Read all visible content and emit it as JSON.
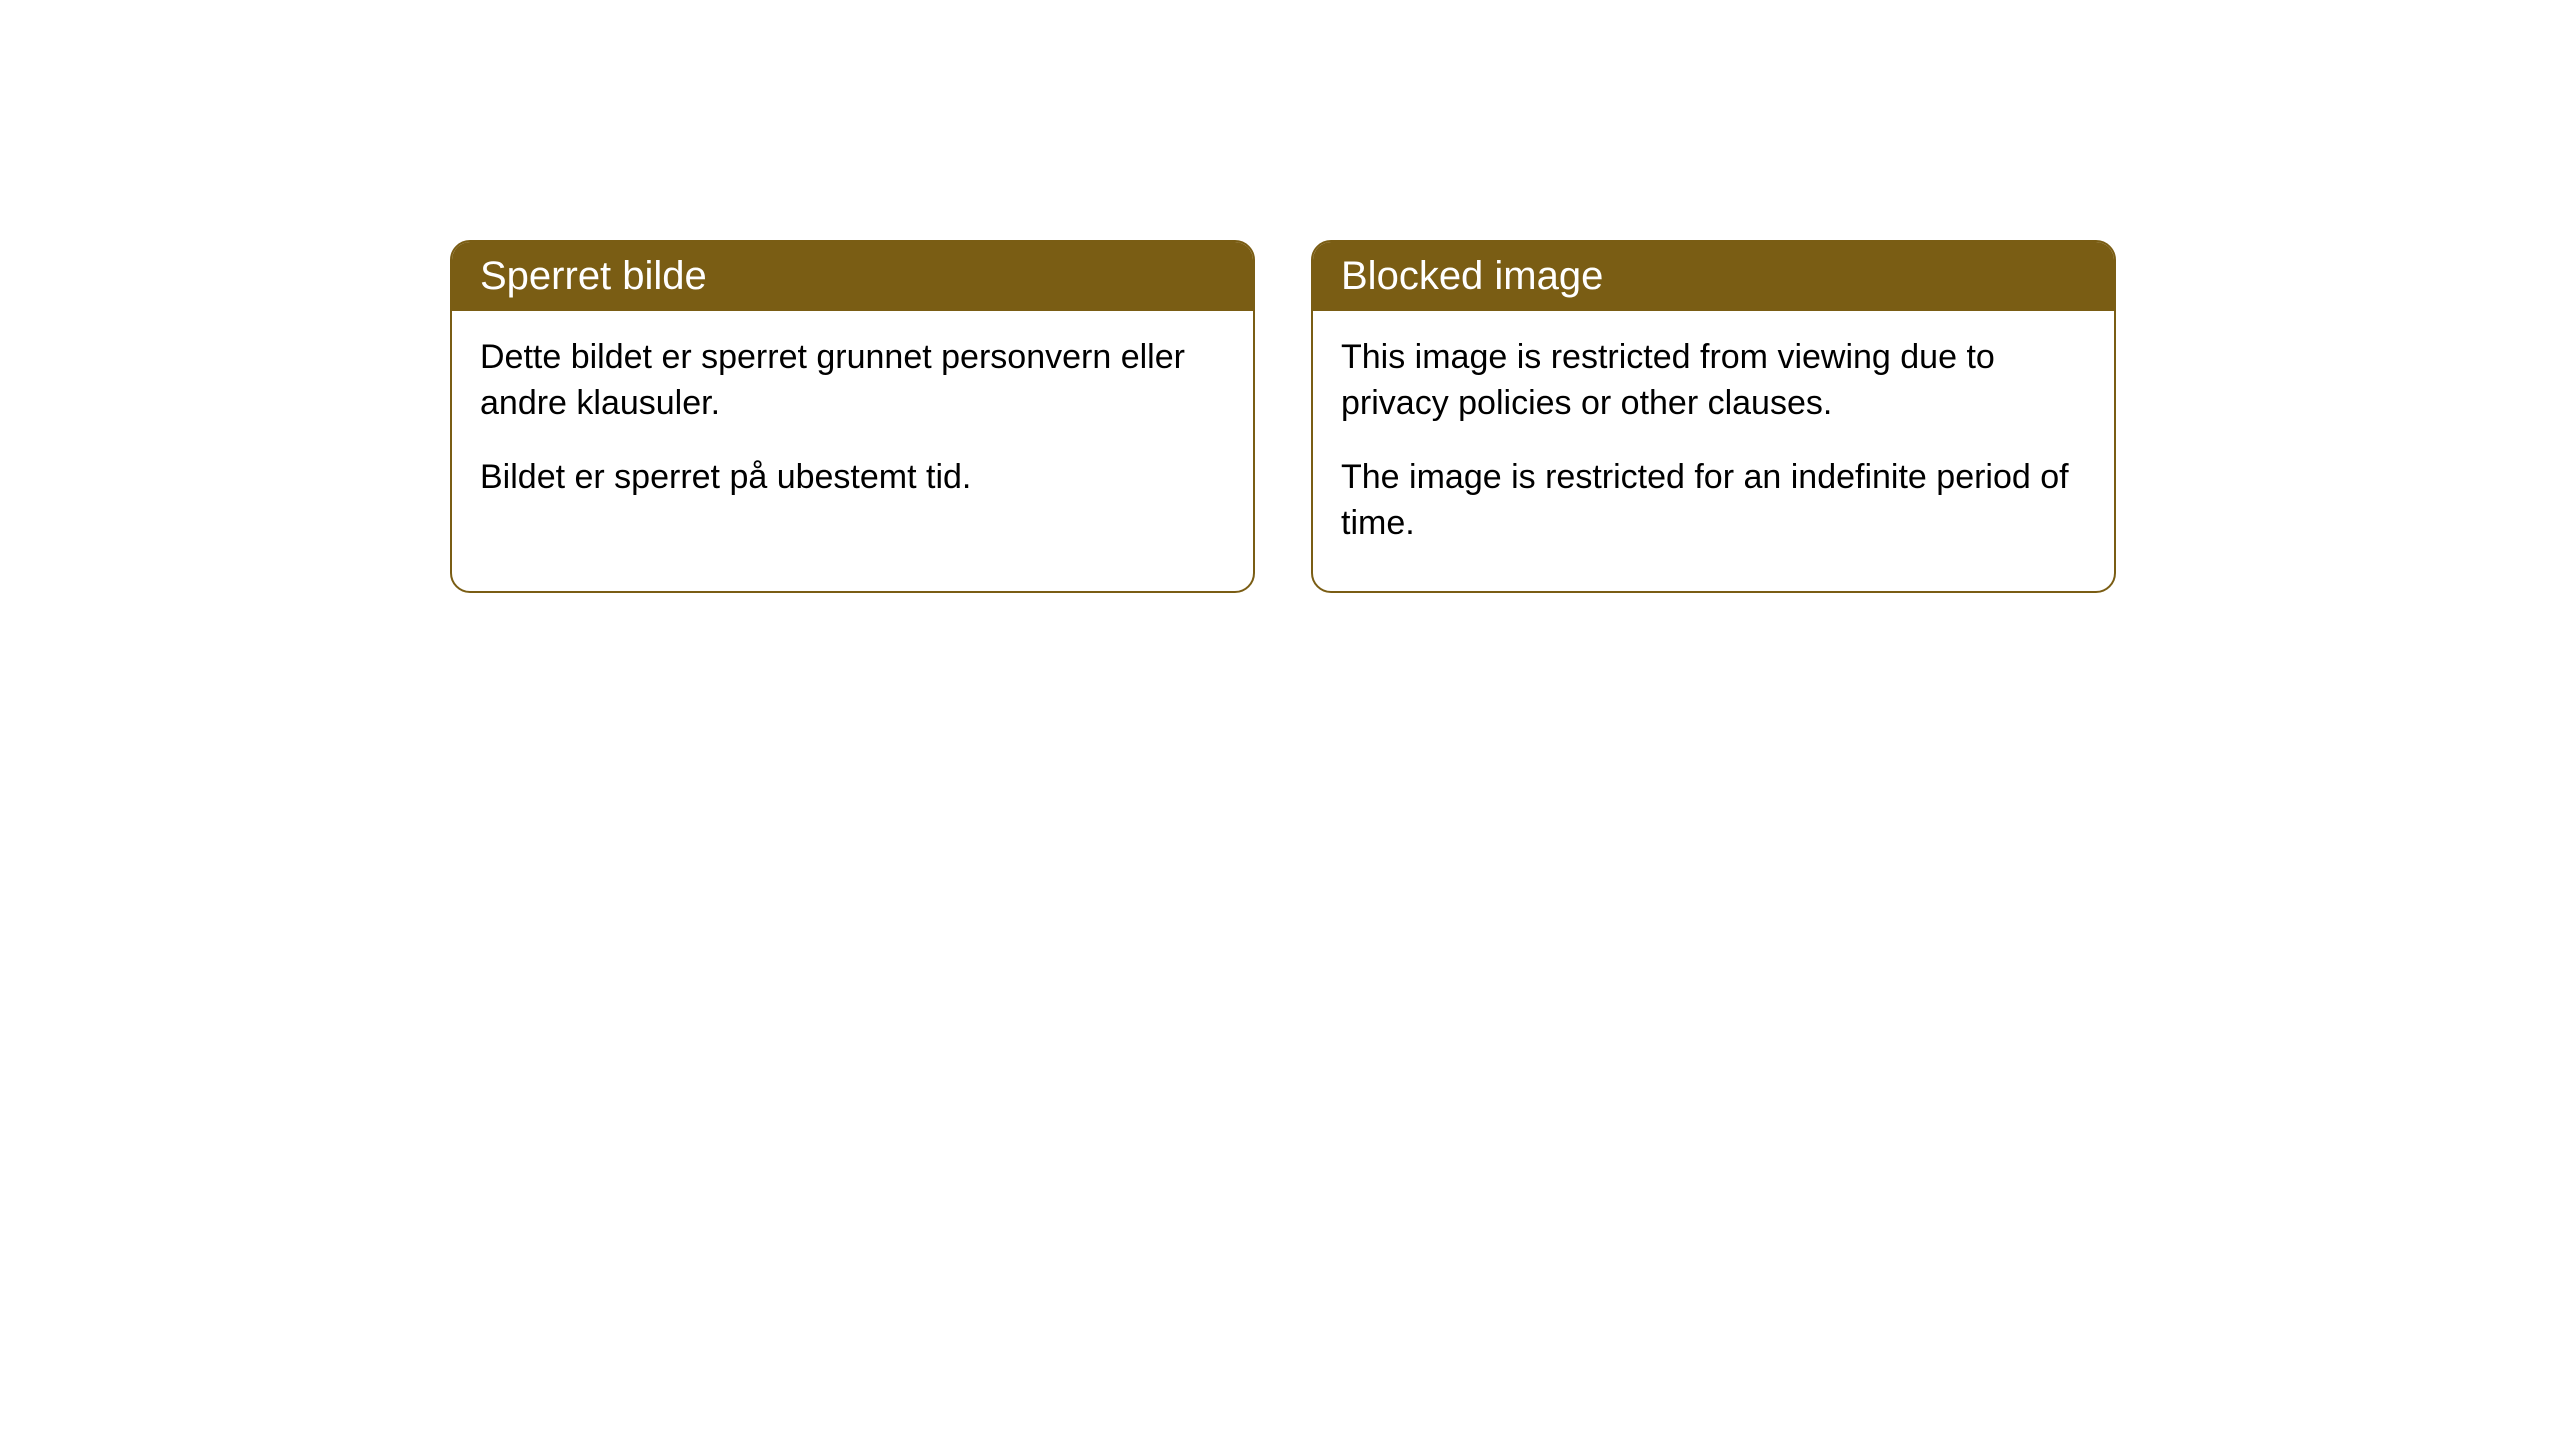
{
  "cards": [
    {
      "title": "Sperret bilde",
      "paragraph1": "Dette bildet er sperret grunnet personvern eller andre klausuler.",
      "paragraph2": "Bildet er sperret på ubestemt tid."
    },
    {
      "title": "Blocked image",
      "paragraph1": "This image is restricted from viewing due to privacy policies or other clauses.",
      "paragraph2": "The image is restricted for an indefinite period of time."
    }
  ],
  "styling": {
    "header_background": "#7a5d14",
    "header_text_color": "#ffffff",
    "border_color": "#7a5d14",
    "body_background": "#ffffff",
    "body_text_color": "#000000",
    "border_radius": 20,
    "title_fontsize": 40,
    "body_fontsize": 34
  }
}
